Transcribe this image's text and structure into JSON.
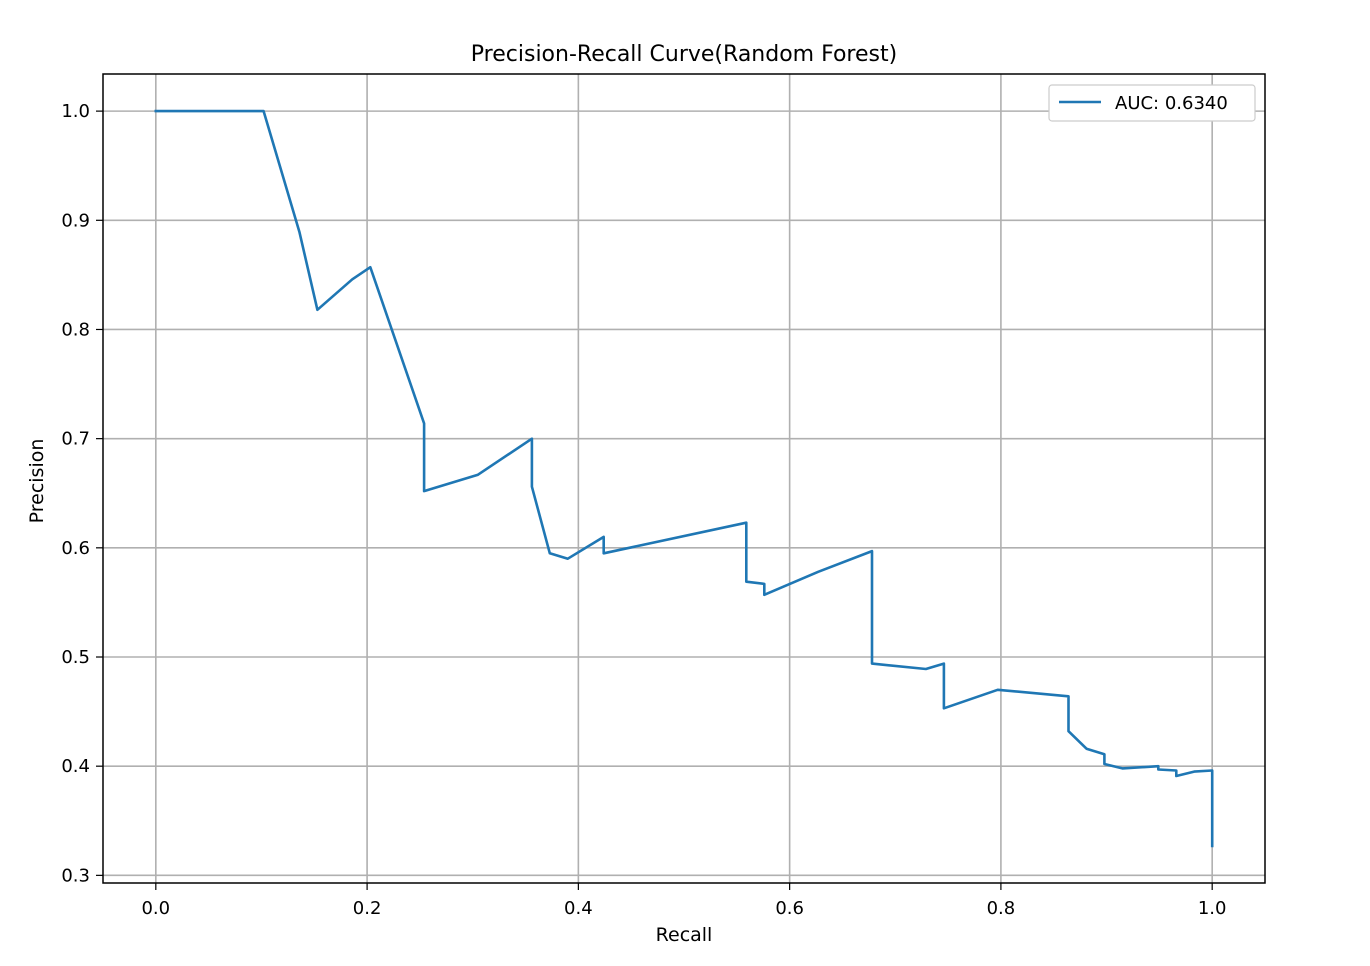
{
  "chart_data": {
    "type": "line",
    "title": "Precision-Recall Curve(Random Forest)",
    "xlabel": "Recall",
    "ylabel": "Precision",
    "xlim": [
      -0.05,
      1.05
    ],
    "ylim": [
      0.293,
      1.034
    ],
    "xticks": [
      0.0,
      0.2,
      0.4,
      0.6,
      0.8,
      1.0
    ],
    "xtick_labels": [
      "0.0",
      "0.2",
      "0.4",
      "0.6",
      "0.8",
      "1.0"
    ],
    "yticks": [
      0.3,
      0.4,
      0.5,
      0.6,
      0.7,
      0.8,
      0.9,
      1.0
    ],
    "ytick_labels": [
      "0.3",
      "0.4",
      "0.5",
      "0.6",
      "0.7",
      "0.8",
      "0.9",
      "1.0"
    ],
    "grid": true,
    "legend_position": "top-right",
    "series_color": "#1f77b4",
    "series": [
      {
        "name": "AUC: 0.6340",
        "x": [
          0.0,
          0.102,
          0.136,
          0.153,
          0.186,
          0.203,
          0.254,
          0.254,
          0.305,
          0.356,
          0.356,
          0.373,
          0.39,
          0.424,
          0.424,
          0.559,
          0.559,
          0.576,
          0.576,
          0.627,
          0.678,
          0.678,
          0.729,
          0.746,
          0.746,
          0.797,
          0.864,
          0.864,
          0.881,
          0.898,
          0.898,
          0.915,
          0.949,
          0.949,
          0.966,
          0.966,
          0.983,
          1.0,
          1.0
        ],
        "y": [
          1.0,
          1.0,
          0.889,
          0.818,
          0.846,
          0.857,
          0.714,
          0.652,
          0.667,
          0.7,
          0.656,
          0.595,
          0.59,
          0.61,
          0.595,
          0.623,
          0.569,
          0.567,
          0.557,
          0.578,
          0.597,
          0.494,
          0.489,
          0.494,
          0.453,
          0.47,
          0.464,
          0.432,
          0.416,
          0.411,
          0.402,
          0.398,
          0.4,
          0.397,
          0.396,
          0.391,
          0.395,
          0.396,
          0.327
        ]
      }
    ]
  }
}
